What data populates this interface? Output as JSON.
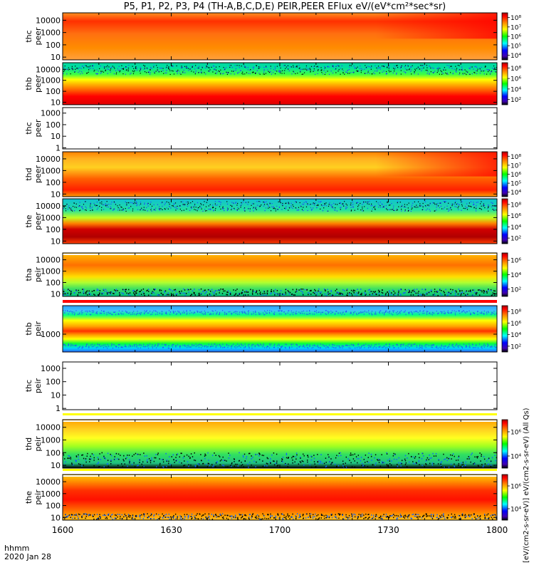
{
  "chart_data": {
    "type": "heatmap",
    "title": "P5, P1, P2, P3, P4 (TH-A,B,C,D,E) PEIR,PEER EFlux eV/(eV*cm²*sec*sr)",
    "xlabel": "hhmm",
    "date_label": "2020 Jan 28",
    "xticks": [
      "1600",
      "1630",
      "1700",
      "1730",
      "1800"
    ],
    "xlim": [
      "16:00",
      "18:00"
    ],
    "colorbar_label": "[eV/(cm2-s-sr-eV)] eV/(cm2-s-sr-eV) (All Qs)",
    "colors": {
      "dark_red": "#a00000",
      "red": "#ff0000",
      "orange": "#ff8c00",
      "yellow": "#ffff00",
      "green": "#00ff00",
      "cyan": "#00ffff",
      "blue": "#0000ff",
      "black": "#000000"
    },
    "panels": [
      {
        "label": [
          "thc",
          "peer"
        ],
        "yscale": "log",
        "yticks": [
          "10",
          "100",
          "1000",
          "10000"
        ],
        "ylim": [
          6,
          40000
        ],
        "has_data": true,
        "cbar_ticks": [
          "10⁴",
          "10⁵",
          "10⁶",
          "10⁷",
          "10⁸"
        ]
      },
      {
        "label": [
          "thb",
          "peer"
        ],
        "yscale": "log",
        "yticks": [
          "10",
          "100",
          "1000",
          "10000"
        ],
        "ylim": [
          6,
          40000
        ],
        "has_data": true,
        "cbar_ticks": [
          "10²",
          "10⁴",
          "10⁶",
          "10⁸"
        ]
      },
      {
        "label": [
          "thc",
          "peer"
        ],
        "yscale": "log",
        "yticks": [
          "1",
          "10",
          "100",
          "1000"
        ],
        "ylim": [
          0.8,
          3000
        ],
        "has_data": false,
        "cbar_ticks": []
      },
      {
        "label": [
          "thd",
          "peer"
        ],
        "yscale": "log",
        "yticks": [
          "10",
          "100",
          "1000",
          "10000"
        ],
        "ylim": [
          6,
          40000
        ],
        "has_data": true,
        "cbar_ticks": [
          "10⁴",
          "10⁵",
          "10⁶",
          "10⁷",
          "10⁸"
        ]
      },
      {
        "label": [
          "the",
          "peer"
        ],
        "yscale": "log",
        "yticks": [
          "10",
          "100",
          "1000",
          "10000"
        ],
        "ylim": [
          6,
          40000
        ],
        "has_data": true,
        "cbar_ticks": [
          "10²",
          "10⁴",
          "10⁶",
          "10⁸"
        ]
      },
      {
        "label": [
          "tha",
          "peir"
        ],
        "yscale": "log",
        "yticks": [
          "10",
          "100",
          "1000",
          "10000"
        ],
        "ylim": [
          6,
          40000
        ],
        "has_data": true,
        "cbar_ticks": [
          "10²",
          "10⁴",
          "10⁶"
        ]
      },
      {
        "label": [
          "thb",
          "peir"
        ],
        "yscale": "log",
        "yticks": [
          "1000"
        ],
        "ylim": [
          100,
          40000
        ],
        "has_data": true,
        "cbar_ticks": [
          "10²",
          "10⁴",
          "10⁶",
          "10⁸"
        ]
      },
      {
        "label": [
          "thc",
          "peir"
        ],
        "yscale": "log",
        "yticks": [
          "1",
          "10",
          "100",
          "1000"
        ],
        "ylim": [
          0.8,
          3000
        ],
        "has_data": false,
        "cbar_ticks": []
      },
      {
        "label": [
          "thd",
          "peir"
        ],
        "yscale": "log",
        "yticks": [
          "10",
          "100",
          "1000",
          "10000"
        ],
        "ylim": [
          6,
          40000
        ],
        "has_data": true,
        "cbar_ticks": [
          "10⁴",
          "10⁶"
        ]
      },
      {
        "label": [
          "the",
          "peir"
        ],
        "yscale": "log",
        "yticks": [
          "10",
          "100",
          "1000",
          "10000"
        ],
        "ylim": [
          6,
          40000
        ],
        "has_data": true,
        "cbar_ticks": [
          "10⁴",
          "10⁶"
        ]
      }
    ]
  }
}
